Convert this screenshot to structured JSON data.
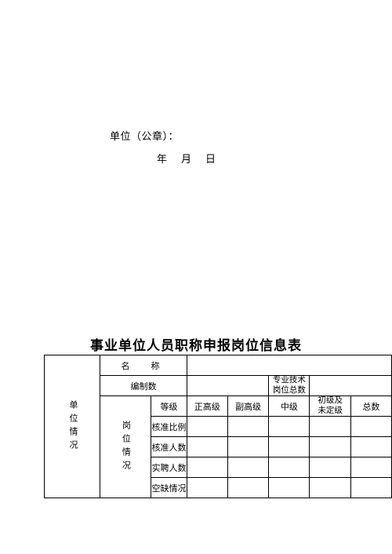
{
  "seal": {
    "line1": "单位（公章）：",
    "year": "年",
    "month": "月",
    "day": "日"
  },
  "doc": {
    "title": "事业单位人员职称申报岗位信息表"
  },
  "table": {
    "side_label1": "单位情况",
    "side_label2": "岗位情况",
    "row_name_label": "名　称",
    "row_name_value": "",
    "row_bianzhi_label": "编制数",
    "row_bianzhi_value": "",
    "zyjs_label_l1": "专业技术",
    "zyjs_label_l2": "岗位总数",
    "zyjs_value": "",
    "hdr_dengji": "等级",
    "hdr_zg": "正高级",
    "hdr_fg": "副高级",
    "hdr_zj": "中级",
    "hdr_cj_l1": "初级及",
    "hdr_cj_l2": "未定级",
    "hdr_zs": "总数",
    "rows": {
      "hzbl": {
        "label": "核准比例",
        "c1": "",
        "c2": "",
        "c3": "",
        "c4": "",
        "c5": ""
      },
      "hzrs": {
        "label": "核准人数",
        "c1": "",
        "c2": "",
        "c3": "",
        "c4": "",
        "c5": ""
      },
      "sprs": {
        "label": "实聘人数",
        "c1": "",
        "c2": "",
        "c3": "",
        "c4": "",
        "c5": ""
      },
      "kqqk": {
        "label": "空缺情况",
        "c1": "",
        "c2": "",
        "c3": "",
        "c4": "",
        "c5": ""
      }
    }
  },
  "colors": {
    "page_bg": "#ffffff",
    "text": "#000000",
    "border": "#000000"
  }
}
